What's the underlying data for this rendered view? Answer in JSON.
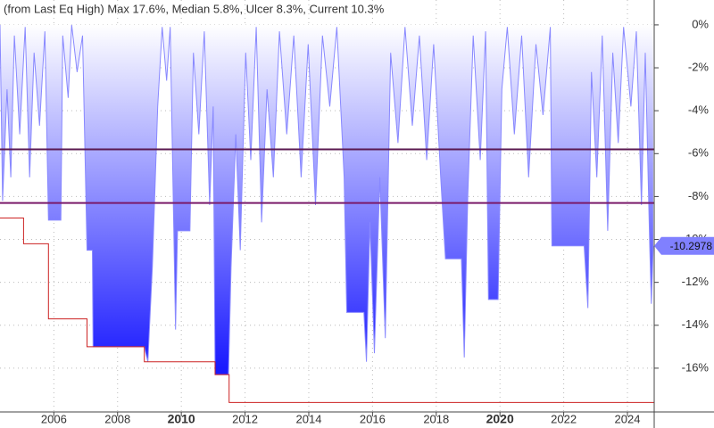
{
  "chart_data": {
    "type": "drawdown",
    "title": "(from Last Eq High) Max 17.6%, Median 5.8%, Ulcer 8.3%, Current 10.3%",
    "xlim": [
      2004.31,
      2024.84
    ],
    "xticks": [
      2006,
      2008,
      2010,
      2012,
      2014,
      2016,
      2018,
      2020,
      2022,
      2024
    ],
    "bold_xticks": [
      2010,
      2020
    ],
    "ylim": [
      -18.04,
      1.16
    ],
    "yticks": [
      {
        "value": 0,
        "label": "0%"
      },
      {
        "value": -2,
        "label": "-2%"
      },
      {
        "value": -4,
        "label": "-4%"
      },
      {
        "value": -6,
        "label": "-6%"
      },
      {
        "value": -8,
        "label": "-8%"
      },
      {
        "value": -10,
        "label": "-10%"
      },
      {
        "value": -12,
        "label": "-12%"
      },
      {
        "value": -14,
        "label": "-14%"
      },
      {
        "value": -16,
        "label": "-16%"
      }
    ],
    "grid": true,
    "series": [
      {
        "color": "#8888ff",
        "fill_gradient": [
          "#ffffff",
          "#1a1aff"
        ],
        "x": [
          2004.31,
          2004.39,
          2004.53,
          2004.65,
          2004.76,
          2004.93,
          2005.1,
          2005.24,
          2005.38,
          2005.55,
          2005.72,
          2005.83,
          2006.22,
          2006.28,
          2006.45,
          2006.56,
          2006.73,
          2006.9,
          2007.04,
          2007.21,
          2007.23,
          2008.84,
          2008.95,
          2009.09,
          2009.26,
          2009.4,
          2009.54,
          2009.65,
          2009.82,
          2009.88,
          2010.27,
          2010.38,
          2010.55,
          2010.72,
          2010.89,
          2011.0,
          2011.06,
          2011.48,
          2011.56,
          2011.71,
          2011.85,
          2012.02,
          2012.18,
          2012.35,
          2012.52,
          2012.69,
          2012.89,
          2013.08,
          2013.31,
          2013.53,
          2013.76,
          2013.98,
          2014.21,
          2014.43,
          2014.66,
          2014.88,
          2015.11,
          2015.19,
          2015.73,
          2015.81,
          2015.92,
          2016.06,
          2016.23,
          2016.4,
          2016.57,
          2016.8,
          2017.02,
          2017.25,
          2017.47,
          2017.7,
          2017.92,
          2018.14,
          2018.29,
          2018.79,
          2018.88,
          2018.99,
          2019.16,
          2019.38,
          2019.55,
          2019.64,
          2019.94,
          2020.06,
          2020.23,
          2020.45,
          2020.68,
          2020.9,
          2021.13,
          2021.35,
          2021.58,
          2021.63,
          2022.64,
          2022.76,
          2022.87,
          2023.04,
          2023.21,
          2023.38,
          2023.54,
          2023.71,
          2023.88,
          2024.11,
          2024.28,
          2024.44,
          2024.56,
          2024.7,
          2024.75,
          2024.81
        ],
        "values": [
          0,
          -8.2,
          -3.0,
          -7.1,
          -0.5,
          -5.1,
          -0.1,
          -7.1,
          -1.3,
          -4.7,
          -0.3,
          -9.1,
          -9.1,
          -0.5,
          -3.4,
          0,
          -2.2,
          -0.5,
          -10.5,
          -10.5,
          -15.0,
          -15.0,
          -15.7,
          -11.3,
          -3.8,
          -0.1,
          -2.6,
          -0.1,
          -14.2,
          -9.6,
          -9.6,
          -1.3,
          -5.1,
          -0.3,
          -8.4,
          -3.8,
          -16.3,
          -16.3,
          -11.3,
          -5.1,
          -10.5,
          -1.3,
          -6.3,
          -0.1,
          -9.2,
          -3.0,
          -7.1,
          -0.3,
          -5.1,
          -0.5,
          -7.1,
          -0.9,
          -8.4,
          -0.5,
          -3.8,
          -0.1,
          -7.1,
          -13.4,
          -13.4,
          -15.7,
          -9.2,
          -15.3,
          -7.1,
          -14.6,
          -1.3,
          -5.5,
          -0.1,
          -4.7,
          -0.5,
          -6.3,
          -0.9,
          -7.1,
          -10.9,
          -10.9,
          -15.5,
          -8.0,
          -0.5,
          -6.3,
          -0.3,
          -12.8,
          -12.8,
          -3.0,
          -0.1,
          -5.1,
          -0.5,
          -7.1,
          -0.9,
          -4.2,
          -0.1,
          -10.3,
          -10.3,
          -13.2,
          -2.2,
          -7.1,
          -0.5,
          -9.6,
          -1.3,
          -5.5,
          -0.1,
          -3.8,
          -0.3,
          -8.4,
          -1.3,
          -10.3,
          -13.0,
          -10.3
        ]
      },
      {
        "color": "#cc2222",
        "x": [
          2004.31,
          2005.05,
          2005.05,
          2005.83,
          2005.83,
          2007.04,
          2007.04,
          2008.84,
          2008.84,
          2011.06,
          2011.06,
          2011.5,
          2011.5,
          2024.84
        ],
        "values": [
          -9.0,
          -9.0,
          -10.2,
          -10.2,
          -13.7,
          -13.7,
          -15.0,
          -15.0,
          -15.7,
          -15.7,
          -16.3,
          -16.3,
          -17.6,
          -17.6
        ]
      }
    ],
    "hlines": [
      {
        "value": -5.8,
        "color": "#5a1850"
      },
      {
        "value": -8.3,
        "color": "#7a1a6a"
      }
    ],
    "current": {
      "value": -10.2978,
      "color": "#8080ff"
    }
  }
}
